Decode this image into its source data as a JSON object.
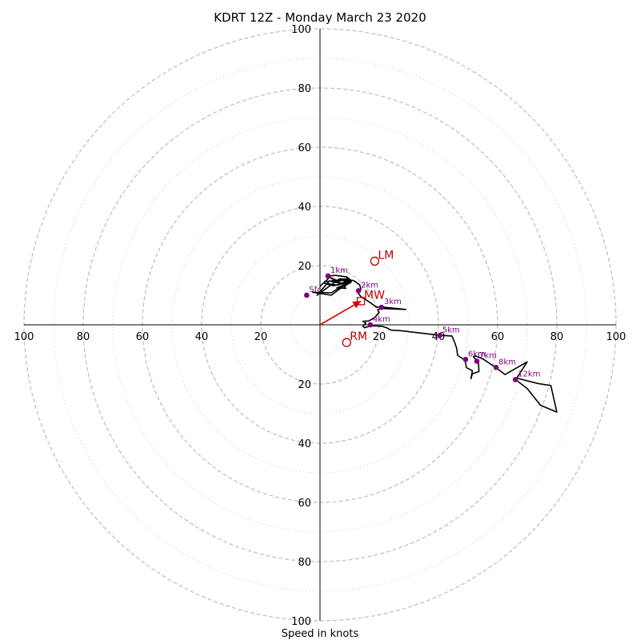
{
  "chart_data": {
    "type": "hodograph",
    "title": "KDRT 12Z - Monday March 23 2020",
    "xlabel": "Speed in knots",
    "ylabel": "",
    "xlim": [
      -100,
      100
    ],
    "ylim": [
      -100,
      100
    ],
    "ring_major": [
      20,
      40,
      60,
      80,
      100
    ],
    "ring_minor": [
      10,
      30,
      50,
      70,
      90
    ],
    "tick_labels": {
      "x_negative": [
        "20",
        "40",
        "60",
        "80",
        "100"
      ],
      "x_positive": [
        "20",
        "40",
        "60",
        "80",
        "100"
      ],
      "y_positive": [
        "20",
        "40",
        "60",
        "80",
        "100"
      ],
      "y_negative": [
        "20",
        "40",
        "60",
        "80",
        "100"
      ]
    },
    "hodograph_line": {
      "color": "#000000",
      "points": [
        [
          0,
          13
        ],
        [
          3.2,
          16
        ],
        [
          7.5,
          13.8
        ],
        [
          3.2,
          14.8
        ],
        [
          -1,
          10
        ],
        [
          6.5,
          15.5
        ],
        [
          9.5,
          15.4
        ],
        [
          1.5,
          14.6
        ],
        [
          9.5,
          15.4
        ],
        [
          10.2,
          15.3
        ],
        [
          6.2,
          14.8
        ],
        [
          2.4,
          16.4
        ],
        [
          5.2,
          16.7
        ],
        [
          8.9,
          16.2
        ],
        [
          9.8,
          15.2
        ],
        [
          8.2,
          14.6
        ],
        [
          9.8,
          15.2
        ],
        [
          9.2,
          16.1
        ],
        [
          9.5,
          15.5
        ],
        [
          10.5,
          14.6
        ],
        [
          9.3,
          14.9
        ],
        [
          9.5,
          15.8
        ],
        [
          10.3,
          15.2
        ],
        [
          10.5,
          14.5
        ],
        [
          9.8,
          14.4
        ],
        [
          9.8,
          14.8
        ],
        [
          9.0,
          15.4
        ],
        [
          9.7,
          15.4
        ],
        [
          9.8,
          15.5
        ],
        [
          9.9,
          15.2
        ],
        [
          10.2,
          15.0
        ],
        [
          10.4,
          14.6
        ],
        [
          10.2,
          14.1
        ],
        [
          9.4,
          13.9
        ],
        [
          8.5,
          13.5
        ],
        [
          3.8,
          10.0
        ],
        [
          -2.5,
          11.0
        ],
        [
          3.8,
          10.8
        ],
        [
          8.5,
          13.8
        ],
        [
          6.5,
          14.0
        ],
        [
          10.5,
          14.6
        ],
        [
          9.2,
          15.4
        ],
        [
          9.8,
          15.6
        ],
        [
          10.1,
          14.8
        ],
        [
          6.0,
          13.4
        ],
        [
          1.6,
          14.0
        ],
        [
          4.4,
          13.2
        ],
        [
          10.2,
          14.4
        ],
        [
          8.1,
          12.8
        ],
        [
          8.6,
          12.5
        ],
        [
          8.7,
          12.3
        ],
        [
          5.7,
          12.5
        ],
        [
          9.3,
          14.0
        ],
        [
          9.6,
          15.2
        ],
        [
          8.2,
          15.0
        ],
        [
          9.9,
          15.3
        ],
        [
          10.3,
          15.2
        ],
        [
          8.9,
          15.5
        ],
        [
          9.4,
          15.5
        ],
        [
          8.8,
          15.2
        ],
        [
          9.8,
          14.6
        ],
        [
          10.6,
          14.5
        ],
        [
          9.9,
          15.1
        ],
        [
          9.8,
          15.5
        ],
        [
          10.3,
          15.2
        ],
        [
          10.0,
          14.8
        ],
        [
          9.6,
          14.6
        ],
        [
          8.2,
          14.4
        ],
        [
          9.5,
          14.7
        ],
        [
          9.0,
          15.2
        ],
        [
          11.2,
          15.0
        ],
        [
          11.2,
          15.0
        ],
        [
          12.2,
          14.4
        ],
        [
          13.4,
          13.5
        ],
        [
          13.8,
          12.0
        ],
        [
          13.0,
          10.5
        ],
        [
          13.9,
          9.5
        ],
        [
          17.0,
          7.5
        ],
        [
          19.0,
          6.0
        ],
        [
          21.0,
          6.0
        ],
        [
          29.0,
          5.2
        ],
        [
          20.5,
          5.5
        ],
        [
          19.5,
          5.0
        ],
        [
          20.0,
          4.2
        ],
        [
          18.5,
          2.5
        ],
        [
          16.5,
          1.3
        ],
        [
          14.5,
          1.2
        ],
        [
          15.5,
          0.5
        ],
        [
          14.5,
          -0.5
        ],
        [
          15.0,
          -1.0
        ],
        [
          17.0,
          -0.4
        ],
        [
          19.0,
          -0.4
        ],
        [
          21.0,
          -0.5
        ],
        [
          22.5,
          -1.0
        ],
        [
          24.0,
          -1.8
        ],
        [
          27.5,
          -2.0
        ],
        [
          40.0,
          -3.5
        ],
        [
          44.6,
          -3.8
        ],
        [
          45.5,
          -6.0
        ],
        [
          46.2,
          -8.0
        ],
        [
          46.5,
          -10.3
        ],
        [
          49.0,
          -12.0
        ],
        [
          49.5,
          -14.5
        ],
        [
          51.5,
          -15.5
        ],
        [
          51.0,
          -18.2
        ],
        [
          51.5,
          -16.5
        ],
        [
          53.7,
          -15.8
        ],
        [
          53.5,
          -12.5
        ],
        [
          51.8,
          -10.8
        ],
        [
          52.5,
          -10.5
        ],
        [
          55.0,
          -11.5
        ],
        [
          59.5,
          -14.5
        ],
        [
          62.5,
          -16.8
        ],
        [
          70.0,
          -12.5
        ],
        [
          66.5,
          -18.0
        ],
        [
          73.5,
          -19.8
        ],
        [
          78.0,
          -20.5
        ],
        [
          80.0,
          -29.5
        ],
        [
          74.5,
          -27.2
        ],
        [
          70.0,
          -21.5
        ],
        [
          66.0,
          -18.5
        ]
      ]
    },
    "height_markers": [
      {
        "label": "1km",
        "u": 2.7,
        "v": 16.5
      },
      {
        "label": "2km",
        "u": 13.0,
        "v": 11.5
      },
      {
        "label": "3km",
        "u": 20.8,
        "v": 5.9
      },
      {
        "label": "4km",
        "u": 17.0,
        "v": 0.0
      },
      {
        "label": "5km",
        "u": 40.5,
        "v": -3.6
      },
      {
        "label": "6km",
        "u": 49.2,
        "v": -11.7
      },
      {
        "label": "7km",
        "u": 53.0,
        "v": -12.3
      },
      {
        "label": "8km",
        "u": 59.5,
        "v": -14.4
      },
      {
        "label": "12km",
        "u": 66.0,
        "v": -18.5
      },
      {
        "label": "Sfc",
        "u": -4.5,
        "v": 10.0
      }
    ],
    "storm_motion": {
      "lm": {
        "label": "LM",
        "u": 18.5,
        "v": 21.5
      },
      "rm": {
        "label": "RM",
        "u": 9.0,
        "v": -6.0
      },
      "mw": {
        "label": "MW",
        "u": 13.8,
        "v": 8.0
      },
      "shear_vector": {
        "u": 13.8,
        "v": 8.0
      }
    },
    "colors": {
      "ring_major": "#bdbdbd",
      "ring_minor": "#d6d6d6",
      "line": "#000000",
      "marker": "#7f007f",
      "motion": "#c00000",
      "shear_vector": "#e00000"
    }
  }
}
